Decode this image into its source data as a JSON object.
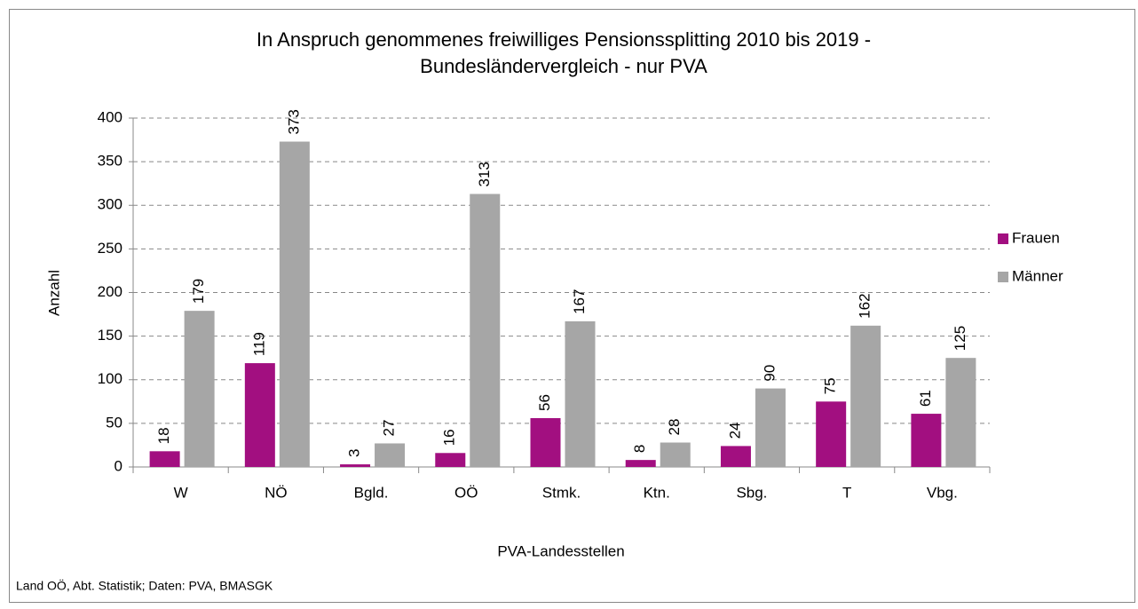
{
  "chart_data": {
    "type": "bar",
    "title": [
      "In Anspruch genommenes freiwilliges Pensionssplitting 2010 bis 2019 -",
      "Bundesländervergleich - nur PVA"
    ],
    "x_label": "PVA-Landesstellen",
    "y_label": "Anzahl",
    "source": "Land OÖ, Abt. Statistik; Daten: PVA, BMASGK",
    "categories": [
      "W",
      "NÖ",
      "Bgld.",
      "OÖ",
      "Stmk.",
      "Ktn.",
      "Sbg.",
      "T",
      "Vbg."
    ],
    "series": [
      {
        "name": "Frauen",
        "color": "#a20f80",
        "values": [
          18,
          119,
          3,
          16,
          56,
          8,
          24,
          75,
          61
        ]
      },
      {
        "name": "Männer",
        "color": "#a6a6a6",
        "values": [
          179,
          373,
          27,
          313,
          167,
          28,
          90,
          162,
          125
        ]
      }
    ],
    "ylim": [
      0,
      400
    ],
    "yticks": [
      0,
      50,
      100,
      150,
      200,
      250,
      300,
      350,
      400
    ],
    "grid": true,
    "legend": "right"
  }
}
